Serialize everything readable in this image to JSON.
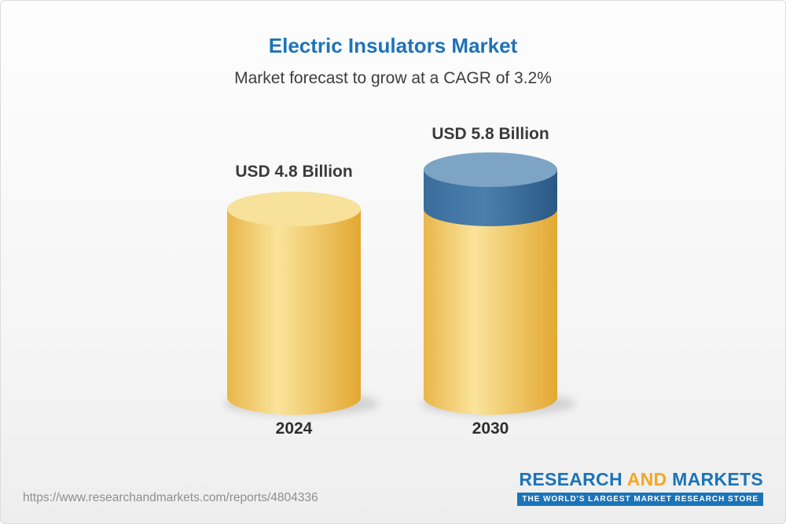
{
  "page": {
    "background_top": "#fdfdfd",
    "background_bottom": "#eeeeee"
  },
  "header": {
    "title": "Electric Insulators Market",
    "subtitle": "Market forecast to grow at a CAGR of 3.2%",
    "title_color": "#1E73B8"
  },
  "chart_data": {
    "type": "bar",
    "variant": "3d-cylinder",
    "title": "Electric Insulators Market",
    "subtitle": "Market forecast to grow at a CAGR of 3.2%",
    "unit": "USD Billion",
    "cagr": "3.2%",
    "categories": [
      "2024",
      "2030"
    ],
    "values": [
      4.8,
      5.8
    ],
    "value_labels": [
      "USD 4.8 Billion",
      "USD 5.8 Billion"
    ],
    "bars": [
      {
        "category": "2024",
        "segments": [
          {
            "value": 4.8,
            "color": "gold"
          }
        ]
      },
      {
        "category": "2030",
        "segments": [
          {
            "value": 4.8,
            "color": "gold"
          },
          {
            "value": 1.0,
            "color": "blue"
          }
        ]
      }
    ],
    "colors": {
      "gold_edge": "#E9B64A",
      "gold_mid": "#FAE39B",
      "gold_edge2": "#E3A832",
      "gold_top": "#F7E19B",
      "blue_edge": "#3A6D9C",
      "blue_mid": "#4B80AD",
      "blue_edge2": "#2A5885",
      "blue_top": "#7DA4C4"
    },
    "ylim": [
      0,
      6
    ],
    "grid": false,
    "legend": false
  },
  "footer": {
    "url": "https://www.researchandmarkets.com/reports/4804336",
    "logo": {
      "research": "RESEARCH",
      "and": "AND",
      "markets": "MARKETS",
      "tagline": "THE WORLD'S LARGEST MARKET RESEARCH STORE",
      "blue": "#1B74B8",
      "yellow": "#F5A623"
    }
  }
}
